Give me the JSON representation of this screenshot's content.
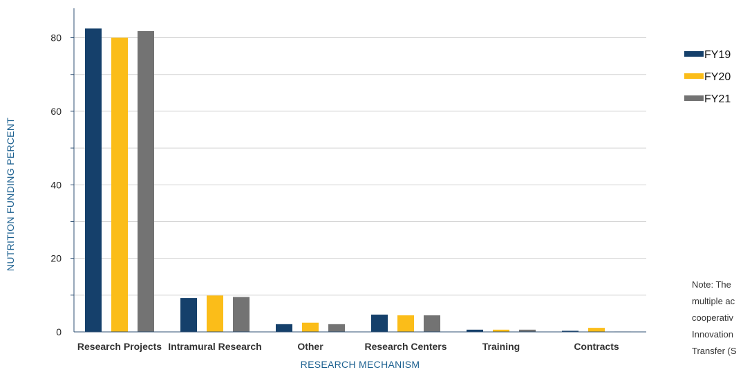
{
  "chart_data": {
    "type": "bar",
    "xlabel": "RESEARCH MECHANISM",
    "ylabel": "NUTRITION FUNDING PERCENT",
    "ylim": [
      0,
      88
    ],
    "yticks": [
      0,
      20,
      40,
      60,
      80
    ],
    "grid": true,
    "legend_position": "right",
    "categories": [
      "Research Projects",
      "Intramural Research",
      "Other",
      "Research Centers",
      "Training",
      "Contracts"
    ],
    "series": [
      {
        "name": "FY19",
        "color": "#15406b",
        "values": [
          82.5,
          9.2,
          2.1,
          4.7,
          0.6,
          0.3
        ]
      },
      {
        "name": "FY20",
        "color": "#fbbd19",
        "values": [
          80.0,
          9.9,
          2.5,
          4.5,
          0.6,
          1.1
        ]
      },
      {
        "name": "FY21",
        "color": "#737373",
        "values": [
          81.8,
          9.5,
          2.1,
          4.5,
          0.6,
          0.1
        ]
      }
    ]
  },
  "note": {
    "lines": [
      "Note: The",
      "multiple ac",
      "cooperativ",
      "Innovation",
      "Transfer (S"
    ]
  }
}
